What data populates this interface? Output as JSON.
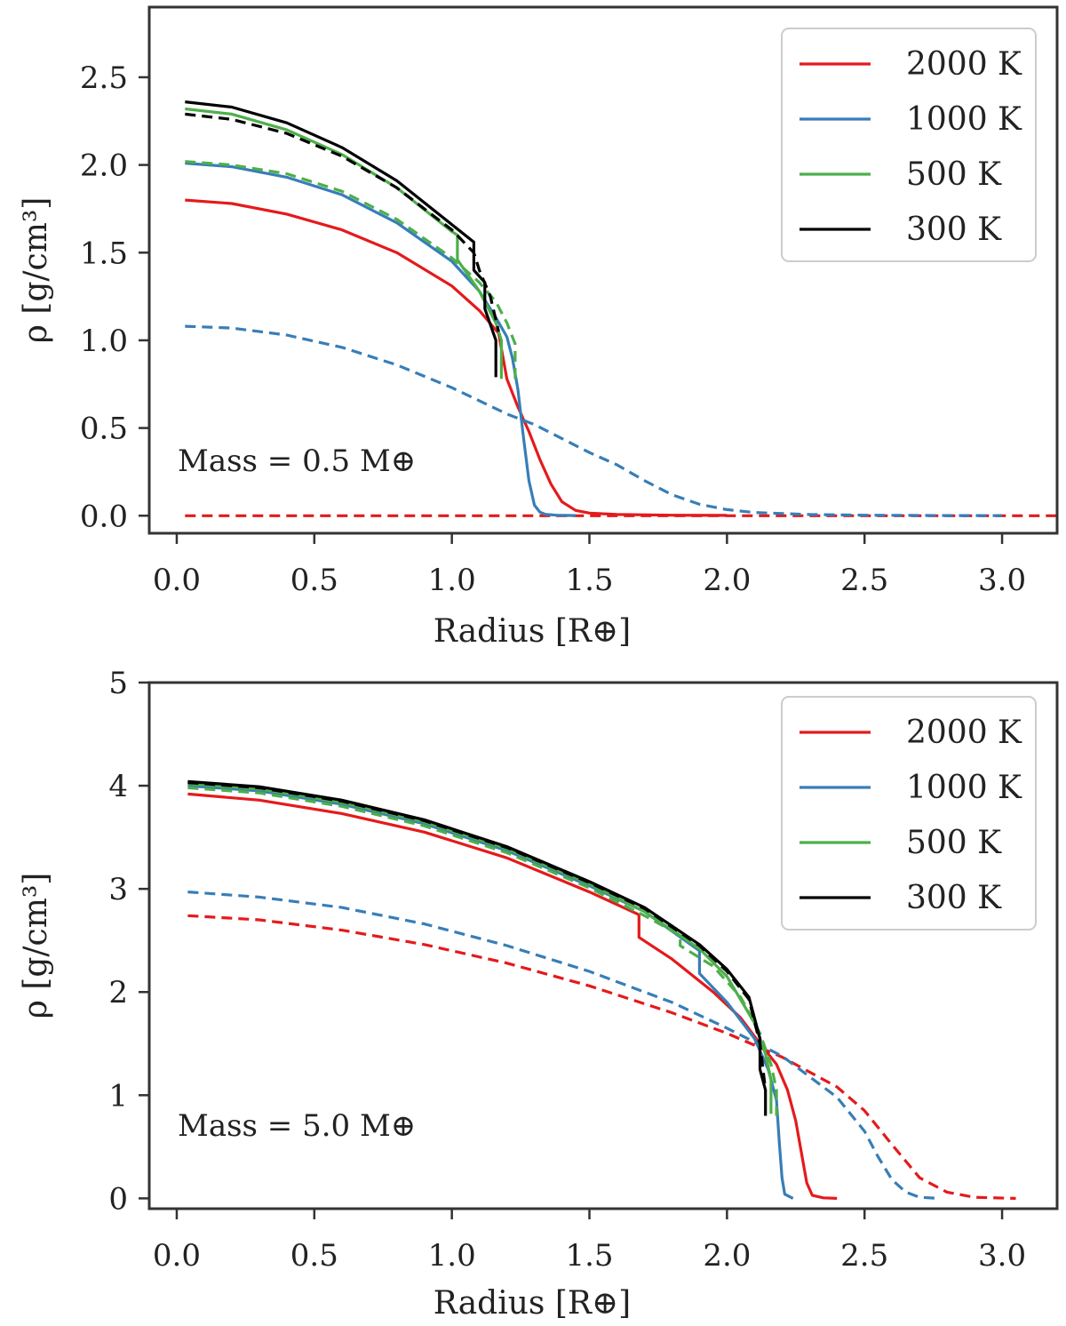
{
  "chart_data": [
    {
      "type": "line",
      "id": "top",
      "ylabel": "ρ [g/cm³]",
      "xlabel": "Radius [R⊕]",
      "xlim": [
        -0.1,
        3.2
      ],
      "ylim": [
        -0.1,
        2.9
      ],
      "xticks": [
        "0.0",
        "0.5",
        "1.0",
        "1.5",
        "2.0",
        "2.5",
        "3.0"
      ],
      "yticks": [
        "0.0",
        "0.5",
        "1.0",
        "1.5",
        "2.0",
        "2.5"
      ],
      "annotation": "Mass = 0.5 M⊕",
      "legend": [
        {
          "label": "2000 K",
          "color": "#e41a1c"
        },
        {
          "label": "1000 K",
          "color": "#377eb8"
        },
        {
          "label": "500 K",
          "color": "#4daf4a"
        },
        {
          "label": "300 K",
          "color": "#000000"
        }
      ],
      "series": [
        {
          "name": "2000 K solid",
          "color": "#e41a1c",
          "dash": false,
          "x": [
            0.03,
            0.2,
            0.4,
            0.6,
            0.8,
            1.0,
            1.1,
            1.17,
            1.2,
            1.24,
            1.28,
            1.32,
            1.36,
            1.4,
            1.45,
            1.5,
            1.6,
            1.8,
            2.0
          ],
          "y": [
            1.8,
            1.78,
            1.72,
            1.63,
            1.5,
            1.31,
            1.17,
            1.04,
            0.78,
            0.62,
            0.48,
            0.32,
            0.18,
            0.08,
            0.03,
            0.015,
            0.007,
            0.003,
            0.002
          ]
        },
        {
          "name": "2000 K dashed",
          "color": "#e41a1c",
          "dash": true,
          "x": [
            0.03,
            3.2
          ],
          "y": [
            0.0,
            0.0
          ]
        },
        {
          "name": "1000 K solid",
          "color": "#377eb8",
          "dash": false,
          "x": [
            0.03,
            0.2,
            0.4,
            0.6,
            0.8,
            1.0,
            1.1,
            1.16,
            1.2,
            1.22,
            1.24,
            1.26,
            1.28,
            1.3,
            1.32,
            1.34,
            1.38,
            1.45
          ],
          "y": [
            2.01,
            1.99,
            1.93,
            1.83,
            1.67,
            1.45,
            1.28,
            1.13,
            1.02,
            0.9,
            0.72,
            0.45,
            0.2,
            0.06,
            0.02,
            0.008,
            0.003,
            0.001
          ]
        },
        {
          "name": "1000 K dashed",
          "color": "#377eb8",
          "dash": true,
          "x": [
            0.03,
            0.2,
            0.4,
            0.6,
            0.8,
            1.0,
            1.2,
            1.3,
            1.4,
            1.5,
            1.6,
            1.7,
            1.8,
            1.9,
            2.0,
            2.1,
            2.3,
            2.5,
            2.8,
            3.0
          ],
          "y": [
            1.08,
            1.07,
            1.03,
            0.96,
            0.86,
            0.73,
            0.58,
            0.52,
            0.44,
            0.36,
            0.29,
            0.2,
            0.12,
            0.065,
            0.035,
            0.018,
            0.007,
            0.003,
            0.001,
            0.0005
          ]
        },
        {
          "name": "500 K solid",
          "color": "#4daf4a",
          "dash": false,
          "x": [
            0.03,
            0.2,
            0.4,
            0.6,
            0.8,
            1.0,
            1.02,
            1.02,
            1.1,
            1.16,
            1.18,
            1.18
          ],
          "y": [
            2.32,
            2.29,
            2.2,
            2.06,
            1.87,
            1.62,
            1.6,
            1.46,
            1.28,
            1.1,
            1.0,
            0.78
          ]
        },
        {
          "name": "500 K dashed",
          "color": "#4daf4a",
          "dash": true,
          "x": [
            0.03,
            0.2,
            0.4,
            0.6,
            0.8,
            1.0,
            1.1,
            1.16,
            1.2,
            1.23,
            1.23
          ],
          "y": [
            2.02,
            2.0,
            1.95,
            1.85,
            1.69,
            1.47,
            1.33,
            1.22,
            1.1,
            0.98,
            0.78
          ]
        },
        {
          "name": "300 K solid",
          "color": "#000000",
          "dash": false,
          "x": [
            0.03,
            0.2,
            0.4,
            0.6,
            0.8,
            1.0,
            1.08,
            1.08,
            1.12,
            1.12,
            1.16,
            1.16
          ],
          "y": [
            2.36,
            2.33,
            2.24,
            2.1,
            1.91,
            1.66,
            1.56,
            1.4,
            1.33,
            1.18,
            1.0,
            0.79
          ]
        },
        {
          "name": "300 K dashed",
          "color": "#000000",
          "dash": true,
          "x": [
            0.03,
            0.2,
            0.4,
            0.6,
            0.8,
            1.0,
            1.08,
            1.1,
            1.14,
            1.17
          ],
          "y": [
            2.29,
            2.26,
            2.18,
            2.05,
            1.87,
            1.63,
            1.5,
            1.4,
            1.25,
            1.05
          ]
        }
      ]
    },
    {
      "type": "line",
      "id": "bottom",
      "ylabel": "ρ [g/cm³]",
      "xlabel": "Radius [R⊕]",
      "xlim": [
        -0.1,
        3.2
      ],
      "ylim": [
        -0.1,
        5.0
      ],
      "xticks": [
        "0.0",
        "0.5",
        "1.0",
        "1.5",
        "2.0",
        "2.5",
        "3.0"
      ],
      "yticks": [
        "0",
        "1",
        "2",
        "3",
        "4",
        "5"
      ],
      "annotation": "Mass = 5.0 M⊕",
      "legend": [
        {
          "label": "2000 K",
          "color": "#e41a1c"
        },
        {
          "label": "1000 K",
          "color": "#377eb8"
        },
        {
          "label": "500 K",
          "color": "#4daf4a"
        },
        {
          "label": "300 K",
          "color": "#000000"
        }
      ],
      "series": [
        {
          "name": "2000 K solid",
          "color": "#e41a1c",
          "dash": false,
          "x": [
            0.04,
            0.3,
            0.6,
            0.9,
            1.2,
            1.5,
            1.68,
            1.68,
            1.8,
            1.95,
            2.05,
            2.12,
            2.18,
            2.22,
            2.25,
            2.27,
            2.29,
            2.31,
            2.35,
            2.4
          ],
          "y": [
            3.92,
            3.86,
            3.73,
            3.55,
            3.3,
            2.97,
            2.75,
            2.53,
            2.32,
            2.0,
            1.75,
            1.5,
            1.3,
            1.05,
            0.75,
            0.45,
            0.15,
            0.03,
            0.005,
            0.0
          ]
        },
        {
          "name": "2000 K dashed",
          "color": "#e41a1c",
          "dash": true,
          "x": [
            0.04,
            0.3,
            0.6,
            0.9,
            1.2,
            1.5,
            1.8,
            2.0,
            2.2,
            2.4,
            2.5,
            2.6,
            2.7,
            2.8,
            2.9,
            3.05
          ],
          "y": [
            2.74,
            2.7,
            2.6,
            2.46,
            2.28,
            2.06,
            1.8,
            1.6,
            1.37,
            1.08,
            0.85,
            0.52,
            0.2,
            0.06,
            0.01,
            0.0
          ]
        },
        {
          "name": "1000 K solid",
          "color": "#377eb8",
          "dash": false,
          "x": [
            0.04,
            0.3,
            0.6,
            0.9,
            1.2,
            1.5,
            1.7,
            1.9,
            1.9,
            2.0,
            2.1,
            2.15,
            2.18,
            2.19,
            2.2,
            2.21,
            2.24
          ],
          "y": [
            4.0,
            3.95,
            3.82,
            3.63,
            3.37,
            3.03,
            2.78,
            2.4,
            2.18,
            1.9,
            1.55,
            1.25,
            0.95,
            0.55,
            0.2,
            0.04,
            0.0
          ]
        },
        {
          "name": "1000 K dashed",
          "color": "#377eb8",
          "dash": true,
          "x": [
            0.04,
            0.3,
            0.6,
            0.9,
            1.2,
            1.5,
            1.8,
            2.0,
            2.2,
            2.4,
            2.5,
            2.55,
            2.6,
            2.65,
            2.7,
            2.77
          ],
          "y": [
            2.97,
            2.92,
            2.82,
            2.66,
            2.45,
            2.2,
            1.9,
            1.65,
            1.38,
            0.98,
            0.65,
            0.4,
            0.18,
            0.06,
            0.01,
            0.0
          ]
        },
        {
          "name": "500 K solid",
          "color": "#4daf4a",
          "dash": false,
          "x": [
            0.04,
            0.3,
            0.6,
            0.9,
            1.2,
            1.5,
            1.7,
            1.9,
            2.0,
            2.1,
            2.14,
            2.16,
            2.16
          ],
          "y": [
            4.02,
            3.97,
            3.84,
            3.65,
            3.39,
            3.05,
            2.78,
            2.42,
            2.15,
            1.7,
            1.4,
            1.15,
            0.82
          ]
        },
        {
          "name": "500 K dashed",
          "color": "#4daf4a",
          "dash": true,
          "x": [
            0.04,
            0.3,
            0.6,
            0.9,
            1.2,
            1.5,
            1.7,
            1.83,
            1.83,
            1.95,
            2.05,
            2.12,
            2.16,
            2.18,
            2.18
          ],
          "y": [
            3.98,
            3.93,
            3.8,
            3.61,
            3.35,
            3.01,
            2.74,
            2.55,
            2.45,
            2.25,
            1.95,
            1.6,
            1.3,
            1.05,
            0.8
          ]
        },
        {
          "name": "300 K solid",
          "color": "#000000",
          "dash": false,
          "x": [
            0.04,
            0.3,
            0.6,
            0.9,
            1.2,
            1.5,
            1.7,
            1.9,
            2.0,
            2.08,
            2.12,
            2.12,
            2.14,
            2.14
          ],
          "y": [
            4.04,
            3.99,
            3.86,
            3.67,
            3.41,
            3.07,
            2.82,
            2.46,
            2.22,
            1.95,
            1.55,
            1.25,
            1.05,
            0.8
          ]
        },
        {
          "name": "300 K dashed",
          "color": "#000000",
          "dash": true,
          "x": [
            0.04,
            0.3,
            0.6,
            0.9,
            1.2,
            1.5,
            1.7,
            1.9,
            2.0,
            2.08,
            2.12,
            2.14
          ],
          "y": [
            4.03,
            3.98,
            3.85,
            3.66,
            3.4,
            3.06,
            2.81,
            2.45,
            2.2,
            1.93,
            1.5,
            1.05
          ]
        }
      ]
    }
  ]
}
